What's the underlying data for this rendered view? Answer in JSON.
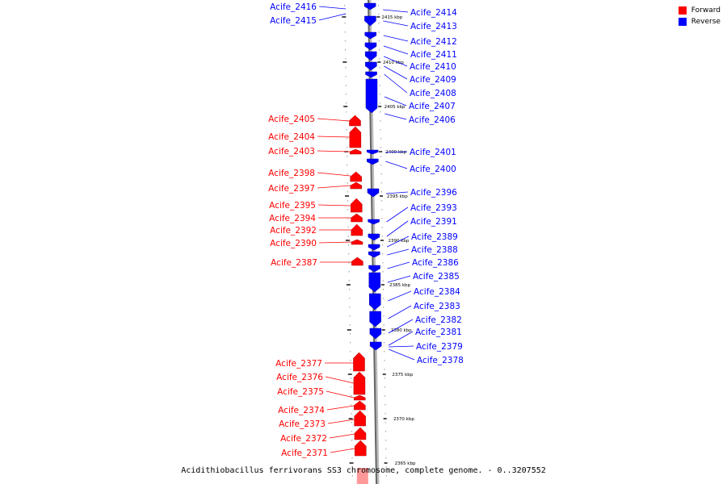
{
  "legend": {
    "forward_label": "Forward",
    "reverse_label": "Reverse",
    "forward_color": "#ff0000",
    "reverse_color": "#0000ff"
  },
  "caption": "Acidithiobacillus ferrivorans SS3 chromosome, complete genome. - 0..3207552",
  "reverse_genes": [
    "Acife_2416",
    "Acife_2415",
    "Acife_2414",
    "Acife_2413",
    "Acife_2412",
    "Acife_2411",
    "Acife_2410",
    "Acife_2409",
    "Acife_2408",
    "Acife_2407",
    "Acife_2406",
    "Acife_2401",
    "Acife_2400",
    "Acife_2396",
    "Acife_2393",
    "Acife_2391",
    "Acife_2389",
    "Acife_2388",
    "Acife_2386",
    "Acife_2385",
    "Acife_2384",
    "Acife_2383",
    "Acife_2382",
    "Acife_2381",
    "Acife_2379",
    "Acife_2378"
  ],
  "forward_genes": [
    "Acife_2405",
    "Acife_2404",
    "Acife_2403",
    "Acife_2398",
    "Acife_2397",
    "Acife_2395",
    "Acife_2394",
    "Acife_2392",
    "Acife_2390",
    "Acife_2387",
    "Acife_2377",
    "Acife_2376",
    "Acife_2375",
    "Acife_2374",
    "Acife_2373",
    "Acife_2372",
    "Acife_2371"
  ],
  "ticks": [
    "2415 kbp",
    "2410 kbp",
    "2405 kbp",
    "2400 kbp",
    "2395 kbp",
    "2390 kbp",
    "2385 kbp",
    "2380 kbp",
    "2375 kbp",
    "2370 kbp",
    "2365 kbp"
  ]
}
